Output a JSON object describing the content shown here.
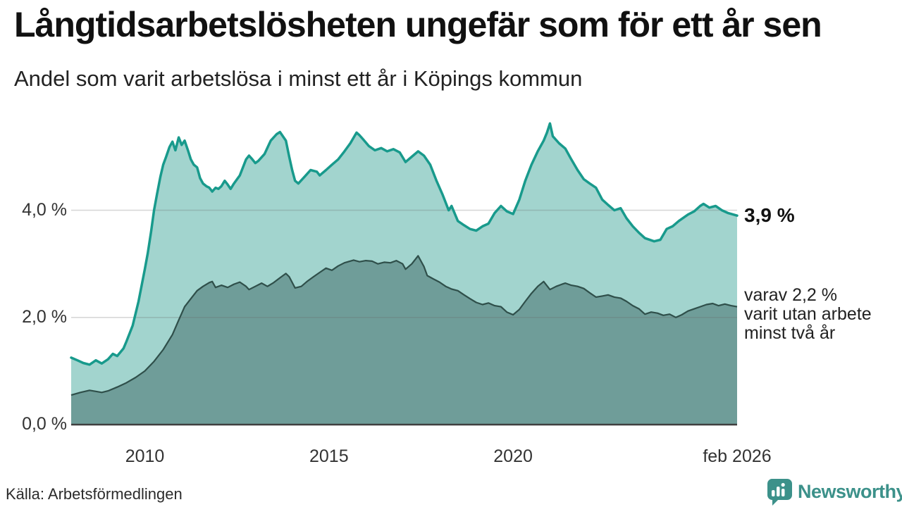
{
  "header": {
    "title": "Långtidsarbetslösheten ungefär som för ett år sen",
    "subtitle": "Andel som varit arbetslösa i minst ett år i Köpings kommun"
  },
  "annotations": {
    "total_end_label": "3,9 %",
    "secondary_lines": [
      "varav 2,2 %",
      "varit utan arbete",
      "minst två år"
    ]
  },
  "source": {
    "label": "Källa: Arbetsförmedlingen"
  },
  "brand": {
    "name": "Newsworthy",
    "color": "#3c918a"
  },
  "colors": {
    "accent_teal_line": "#189a8c",
    "fill_light_teal": "#a2d4ce",
    "fill_dark_teal": "#6f9d99",
    "dark_line": "#2f4f4a",
    "gridline": "#d9d9d9",
    "baseline": "#3f3f3f",
    "text": "#222222"
  },
  "axes": {
    "y_ticks": [
      {
        "value": 0,
        "label": "0,0 %"
      },
      {
        "value": 2,
        "label": "2,0 %"
      },
      {
        "value": 4,
        "label": "4,0 %"
      }
    ],
    "x_ticks": [
      {
        "t": 2010,
        "label": "2010"
      },
      {
        "t": 2015,
        "label": "2015"
      },
      {
        "t": 2020,
        "label": "2020"
      },
      {
        "t": 2026.083,
        "label": "feb 2026"
      }
    ]
  },
  "chart_data": {
    "type": "area",
    "title": "Långtidsarbetslösheten ungefär som för ett år sen",
    "subtitle": "Andel som varit arbetslösa i minst ett år i Köpings kommun",
    "ylabel": "%",
    "x_unit": "decimal_year",
    "x_range": [
      2008.0,
      2026.083
    ],
    "ylim": [
      0,
      5.76
    ],
    "grid": "horizontal",
    "legend_position": "right-annotations",
    "series": [
      {
        "name": "Arbetslösa minst ett år",
        "end_value": 3.9,
        "end_label": "3,9 %",
        "points": [
          [
            2008.0,
            1.25
          ],
          [
            2008.17,
            1.2
          ],
          [
            2008.33,
            1.15
          ],
          [
            2008.5,
            1.12
          ],
          [
            2008.67,
            1.2
          ],
          [
            2008.83,
            1.14
          ],
          [
            2009.0,
            1.22
          ],
          [
            2009.13,
            1.32
          ],
          [
            2009.25,
            1.28
          ],
          [
            2009.42,
            1.42
          ],
          [
            2009.5,
            1.55
          ],
          [
            2009.67,
            1.85
          ],
          [
            2009.83,
            2.3
          ],
          [
            2010.0,
            2.9
          ],
          [
            2010.08,
            3.2
          ],
          [
            2010.17,
            3.6
          ],
          [
            2010.25,
            4.0
          ],
          [
            2010.33,
            4.3
          ],
          [
            2010.42,
            4.62
          ],
          [
            2010.5,
            4.85
          ],
          [
            2010.58,
            5.0
          ],
          [
            2010.67,
            5.18
          ],
          [
            2010.75,
            5.28
          ],
          [
            2010.83,
            5.12
          ],
          [
            2010.92,
            5.36
          ],
          [
            2011.0,
            5.22
          ],
          [
            2011.08,
            5.3
          ],
          [
            2011.17,
            5.12
          ],
          [
            2011.25,
            4.95
          ],
          [
            2011.33,
            4.85
          ],
          [
            2011.42,
            4.8
          ],
          [
            2011.5,
            4.6
          ],
          [
            2011.58,
            4.5
          ],
          [
            2011.67,
            4.45
          ],
          [
            2011.75,
            4.42
          ],
          [
            2011.83,
            4.35
          ],
          [
            2011.92,
            4.42
          ],
          [
            2012.0,
            4.4
          ],
          [
            2012.08,
            4.45
          ],
          [
            2012.17,
            4.55
          ],
          [
            2012.25,
            4.48
          ],
          [
            2012.33,
            4.4
          ],
          [
            2012.42,
            4.5
          ],
          [
            2012.58,
            4.65
          ],
          [
            2012.75,
            4.95
          ],
          [
            2012.83,
            5.02
          ],
          [
            2012.92,
            4.95
          ],
          [
            2013.0,
            4.88
          ],
          [
            2013.08,
            4.92
          ],
          [
            2013.25,
            5.05
          ],
          [
            2013.42,
            5.3
          ],
          [
            2013.58,
            5.42
          ],
          [
            2013.67,
            5.46
          ],
          [
            2013.83,
            5.3
          ],
          [
            2013.92,
            5.0
          ],
          [
            2014.0,
            4.75
          ],
          [
            2014.08,
            4.55
          ],
          [
            2014.17,
            4.5
          ],
          [
            2014.33,
            4.62
          ],
          [
            2014.5,
            4.75
          ],
          [
            2014.67,
            4.72
          ],
          [
            2014.75,
            4.65
          ],
          [
            2014.92,
            4.75
          ],
          [
            2015.08,
            4.85
          ],
          [
            2015.25,
            4.95
          ],
          [
            2015.42,
            5.1
          ],
          [
            2015.58,
            5.25
          ],
          [
            2015.75,
            5.45
          ],
          [
            2015.83,
            5.4
          ],
          [
            2015.92,
            5.33
          ],
          [
            2016.08,
            5.2
          ],
          [
            2016.25,
            5.12
          ],
          [
            2016.42,
            5.16
          ],
          [
            2016.58,
            5.1
          ],
          [
            2016.75,
            5.14
          ],
          [
            2016.92,
            5.08
          ],
          [
            2017.08,
            4.9
          ],
          [
            2017.25,
            5.0
          ],
          [
            2017.42,
            5.1
          ],
          [
            2017.58,
            5.02
          ],
          [
            2017.75,
            4.85
          ],
          [
            2017.92,
            4.55
          ],
          [
            2018.08,
            4.3
          ],
          [
            2018.25,
            4.0
          ],
          [
            2018.33,
            4.08
          ],
          [
            2018.5,
            3.8
          ],
          [
            2018.67,
            3.72
          ],
          [
            2018.83,
            3.65
          ],
          [
            2019.0,
            3.62
          ],
          [
            2019.17,
            3.7
          ],
          [
            2019.33,
            3.75
          ],
          [
            2019.5,
            3.95
          ],
          [
            2019.67,
            4.08
          ],
          [
            2019.83,
            3.98
          ],
          [
            2020.0,
            3.93
          ],
          [
            2020.17,
            4.2
          ],
          [
            2020.33,
            4.55
          ],
          [
            2020.5,
            4.85
          ],
          [
            2020.67,
            5.1
          ],
          [
            2020.83,
            5.3
          ],
          [
            2020.92,
            5.45
          ],
          [
            2021.0,
            5.62
          ],
          [
            2021.08,
            5.38
          ],
          [
            2021.25,
            5.25
          ],
          [
            2021.42,
            5.15
          ],
          [
            2021.58,
            4.95
          ],
          [
            2021.75,
            4.75
          ],
          [
            2021.92,
            4.58
          ],
          [
            2022.08,
            4.5
          ],
          [
            2022.25,
            4.42
          ],
          [
            2022.42,
            4.2
          ],
          [
            2022.58,
            4.1
          ],
          [
            2022.75,
            4.0
          ],
          [
            2022.92,
            4.04
          ],
          [
            2023.08,
            3.85
          ],
          [
            2023.25,
            3.7
          ],
          [
            2023.42,
            3.58
          ],
          [
            2023.58,
            3.48
          ],
          [
            2023.83,
            3.42
          ],
          [
            2024.0,
            3.45
          ],
          [
            2024.17,
            3.65
          ],
          [
            2024.33,
            3.7
          ],
          [
            2024.5,
            3.8
          ],
          [
            2024.75,
            3.92
          ],
          [
            2024.92,
            3.98
          ],
          [
            2025.08,
            4.08
          ],
          [
            2025.17,
            4.12
          ],
          [
            2025.33,
            4.05
          ],
          [
            2025.5,
            4.08
          ],
          [
            2025.67,
            4.0
          ],
          [
            2025.83,
            3.95
          ],
          [
            2026.083,
            3.9
          ]
        ]
      },
      {
        "name": "varav utan arbete minst två år",
        "end_value": 2.2,
        "end_label": "varav 2,2 % varit utan arbete minst två år",
        "points": [
          [
            2008.0,
            0.55
          ],
          [
            2008.25,
            0.6
          ],
          [
            2008.5,
            0.64
          ],
          [
            2008.67,
            0.62
          ],
          [
            2008.83,
            0.6
          ],
          [
            2009.0,
            0.63
          ],
          [
            2009.25,
            0.7
          ],
          [
            2009.5,
            0.78
          ],
          [
            2009.75,
            0.88
          ],
          [
            2010.0,
            1.0
          ],
          [
            2010.25,
            1.18
          ],
          [
            2010.5,
            1.4
          ],
          [
            2010.75,
            1.68
          ],
          [
            2010.92,
            1.95
          ],
          [
            2011.08,
            2.2
          ],
          [
            2011.25,
            2.35
          ],
          [
            2011.42,
            2.5
          ],
          [
            2011.58,
            2.58
          ],
          [
            2011.75,
            2.65
          ],
          [
            2011.83,
            2.67
          ],
          [
            2011.92,
            2.56
          ],
          [
            2012.08,
            2.6
          ],
          [
            2012.25,
            2.56
          ],
          [
            2012.42,
            2.62
          ],
          [
            2012.58,
            2.66
          ],
          [
            2012.75,
            2.58
          ],
          [
            2012.83,
            2.52
          ],
          [
            2013.0,
            2.58
          ],
          [
            2013.17,
            2.64
          ],
          [
            2013.33,
            2.58
          ],
          [
            2013.5,
            2.65
          ],
          [
            2013.67,
            2.74
          ],
          [
            2013.83,
            2.82
          ],
          [
            2013.92,
            2.76
          ],
          [
            2014.08,
            2.55
          ],
          [
            2014.25,
            2.58
          ],
          [
            2014.42,
            2.68
          ],
          [
            2014.58,
            2.76
          ],
          [
            2014.75,
            2.84
          ],
          [
            2014.92,
            2.92
          ],
          [
            2015.08,
            2.88
          ],
          [
            2015.25,
            2.96
          ],
          [
            2015.42,
            3.02
          ],
          [
            2015.67,
            3.07
          ],
          [
            2015.83,
            3.04
          ],
          [
            2016.0,
            3.06
          ],
          [
            2016.17,
            3.05
          ],
          [
            2016.33,
            3.0
          ],
          [
            2016.5,
            3.03
          ],
          [
            2016.67,
            3.02
          ],
          [
            2016.83,
            3.06
          ],
          [
            2017.0,
            3.0
          ],
          [
            2017.08,
            2.9
          ],
          [
            2017.25,
            3.0
          ],
          [
            2017.42,
            3.15
          ],
          [
            2017.58,
            2.95
          ],
          [
            2017.67,
            2.78
          ],
          [
            2017.83,
            2.72
          ],
          [
            2018.0,
            2.66
          ],
          [
            2018.17,
            2.58
          ],
          [
            2018.33,
            2.53
          ],
          [
            2018.5,
            2.5
          ],
          [
            2018.67,
            2.42
          ],
          [
            2018.83,
            2.35
          ],
          [
            2019.0,
            2.28
          ],
          [
            2019.17,
            2.24
          ],
          [
            2019.33,
            2.27
          ],
          [
            2019.5,
            2.22
          ],
          [
            2019.67,
            2.2
          ],
          [
            2019.83,
            2.1
          ],
          [
            2020.0,
            2.05
          ],
          [
            2020.17,
            2.15
          ],
          [
            2020.33,
            2.3
          ],
          [
            2020.5,
            2.45
          ],
          [
            2020.67,
            2.58
          ],
          [
            2020.83,
            2.67
          ],
          [
            2021.0,
            2.52
          ],
          [
            2021.17,
            2.58
          ],
          [
            2021.33,
            2.62
          ],
          [
            2021.42,
            2.64
          ],
          [
            2021.58,
            2.6
          ],
          [
            2021.75,
            2.58
          ],
          [
            2021.92,
            2.54
          ],
          [
            2022.08,
            2.46
          ],
          [
            2022.25,
            2.38
          ],
          [
            2022.42,
            2.4
          ],
          [
            2022.58,
            2.42
          ],
          [
            2022.75,
            2.38
          ],
          [
            2022.92,
            2.36
          ],
          [
            2023.08,
            2.3
          ],
          [
            2023.25,
            2.22
          ],
          [
            2023.42,
            2.16
          ],
          [
            2023.58,
            2.06
          ],
          [
            2023.75,
            2.1
          ],
          [
            2023.92,
            2.08
          ],
          [
            2024.08,
            2.04
          ],
          [
            2024.25,
            2.06
          ],
          [
            2024.42,
            2.0
          ],
          [
            2024.58,
            2.05
          ],
          [
            2024.75,
            2.12
          ],
          [
            2024.92,
            2.16
          ],
          [
            2025.08,
            2.2
          ],
          [
            2025.25,
            2.24
          ],
          [
            2025.42,
            2.26
          ],
          [
            2025.58,
            2.22
          ],
          [
            2025.75,
            2.25
          ],
          [
            2025.92,
            2.22
          ],
          [
            2026.083,
            2.2
          ]
        ]
      }
    ]
  }
}
